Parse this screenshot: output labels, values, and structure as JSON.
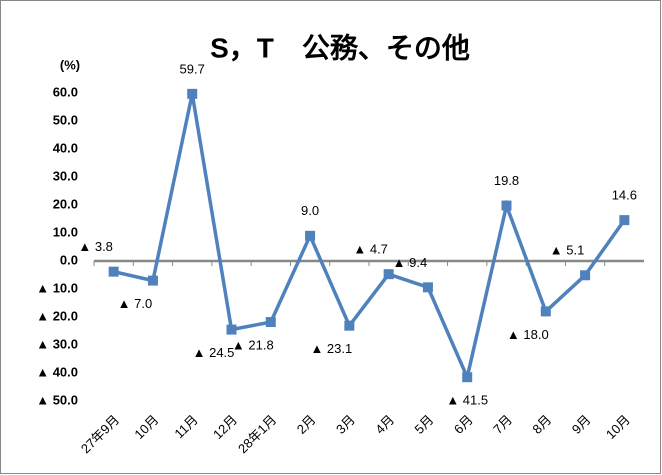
{
  "chart_data": {
    "type": "line",
    "title": "S，T　公務、その他",
    "y_label": "(%)",
    "categories": [
      "27年9月",
      "10月",
      "11月",
      "12月",
      "28年1月",
      "2月",
      "3月",
      "4月",
      "5月",
      "6月",
      "7月",
      "8月",
      "9月",
      "10月"
    ],
    "series": [
      {
        "color": "#4f81bd",
        "values": [
          -3.8,
          -7.0,
          59.7,
          -24.5,
          -21.8,
          9.0,
          -23.1,
          -4.7,
          -9.4,
          -41.5,
          19.8,
          -18.0,
          -5.1,
          14.6
        ],
        "value_labels": [
          "▲ 3.8",
          "▲ 7.0",
          "59.7",
          "▲ 24.5",
          "▲ 21.8",
          "9.0",
          "▲ 23.1",
          "▲ 4.7",
          "▲ 9.4",
          "▲ 41.5",
          "19.8",
          "▲ 18.0",
          "▲ 5.1",
          "14.6"
        ]
      }
    ],
    "ylim": [
      -50,
      60
    ],
    "yticks": [
      {
        "value": 60,
        "label": "60.0"
      },
      {
        "value": 50,
        "label": "50.0"
      },
      {
        "value": 40,
        "label": "40.0"
      },
      {
        "value": 30,
        "label": "30.0"
      },
      {
        "value": 20,
        "label": "20.0"
      },
      {
        "value": 10,
        "label": "10.0"
      },
      {
        "value": 0,
        "label": "0.0"
      },
      {
        "value": -10,
        "label": "▲ 10.0"
      },
      {
        "value": -20,
        "label": "▲ 20.0"
      },
      {
        "value": -30,
        "label": "▲ 30.0"
      },
      {
        "value": -40,
        "label": "▲ 40.0"
      },
      {
        "value": -50,
        "label": "▲ 50.0"
      }
    ],
    "grid": false
  }
}
